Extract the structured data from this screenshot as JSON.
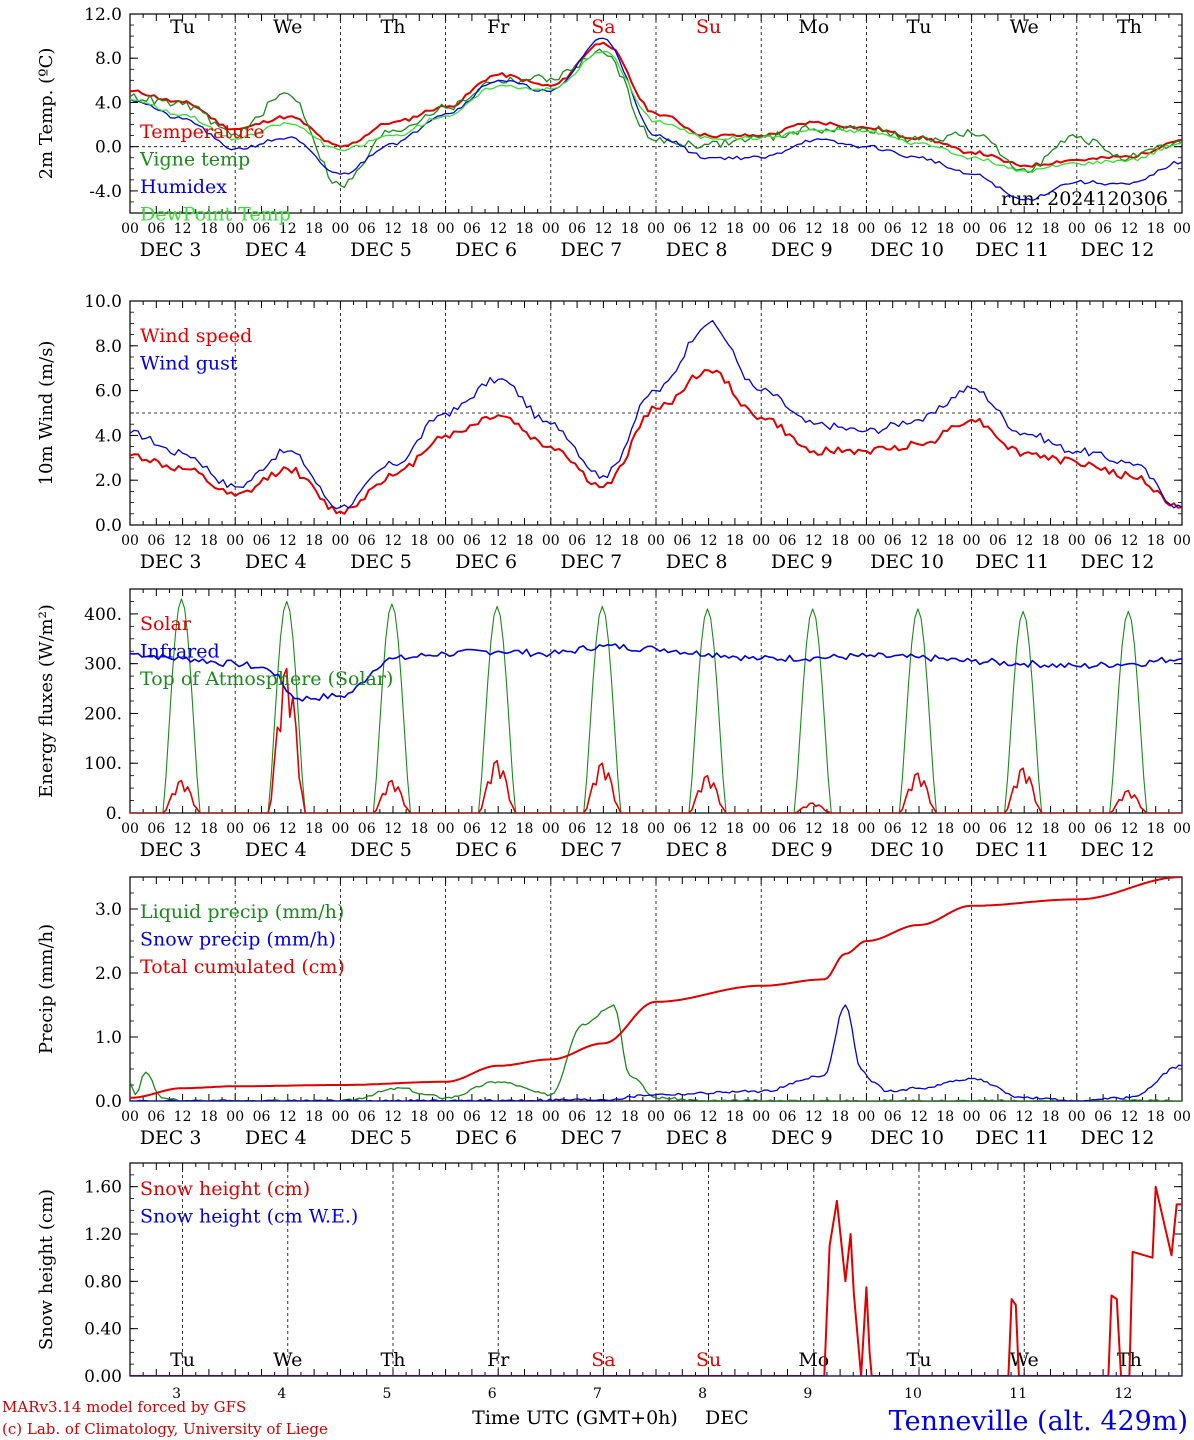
{
  "colors": {
    "red": "#e00000",
    "green": "#1a8a1a",
    "blue": "#0000e0",
    "lightgreen": "#33e033",
    "weekend": "#e00000",
    "text": "#000000"
  },
  "footer": {
    "credit_line1": "MARv3.14 model forced by GFS",
    "credit_line2": "(c) Lab. of Climatology, University of Liege",
    "xlabel": "Time UTC (GMT+0h)",
    "month": "DEC",
    "station": "Tenneville (alt. 429m)"
  },
  "chart_data": [
    {
      "type": "line",
      "ylabel": "2m Temp. (ºC)",
      "ylim": [
        -6,
        12
      ],
      "yticks": [
        "12.0",
        "8.0",
        "4.0",
        "0.0",
        "-4.0"
      ],
      "ytick_values": [
        12,
        8,
        4,
        0,
        -4
      ],
      "refline": 0,
      "annotation": "run: 2024120306",
      "weekdays": [
        "Tu",
        "We",
        "Th",
        "Fr",
        "Sa",
        "Su",
        "Mo",
        "Tu",
        "We",
        "Th"
      ],
      "weekend_days": [
        "Sa",
        "Su"
      ],
      "x_hours": [
        "00",
        "06",
        "12",
        "18"
      ],
      "dates": [
        "DEC 3",
        "DEC 4",
        "DEC 5",
        "DEC 6",
        "DEC 7",
        "DEC 8",
        "DEC 9",
        "DEC 10",
        "DEC 11",
        "DEC 12"
      ],
      "x": [
        0,
        0.5,
        1,
        1.5,
        2,
        2.5,
        3,
        3.5,
        4,
        4.5,
        5,
        5.5,
        6,
        6.5,
        7,
        7.5,
        8,
        8.5,
        9,
        9.5,
        10
      ],
      "series": [
        {
          "name": "Temperature",
          "color": "red",
          "values": [
            5.0,
            4.0,
            1.6,
            2.7,
            0.0,
            2.2,
            3.6,
            6.5,
            5.5,
            9.4,
            3.0,
            1.0,
            1.0,
            2.2,
            1.7,
            0.8,
            -0.5,
            -1.7,
            -1.2,
            -0.9,
            0.6
          ]
        },
        {
          "name": "Vigne temp",
          "color": "green",
          "values": [
            4.5,
            3.8,
            1.2,
            4.8,
            -3.5,
            1.5,
            3.5,
            6.0,
            6.2,
            8.5,
            0.5,
            0.2,
            0.8,
            1.6,
            1.6,
            0.6,
            1.2,
            -2.0,
            0.8,
            -1.0,
            0.3
          ]
        },
        {
          "name": "Humidex",
          "color": "blue",
          "values": [
            4.3,
            2.5,
            -0.2,
            0.8,
            -2.5,
            0.3,
            3.0,
            6.0,
            5.0,
            9.8,
            1.0,
            -1.0,
            -1.0,
            0.6,
            0.0,
            -1.0,
            -2.5,
            -4.8,
            -3.2,
            -3.4,
            -1.4
          ]
        },
        {
          "name": "DewPoint Temp",
          "color": "lightgreen",
          "values": [
            4.3,
            2.9,
            0.7,
            2.1,
            -0.3,
            1.0,
            2.8,
            5.5,
            5.2,
            8.6,
            2.3,
            0.8,
            0.8,
            1.5,
            1.4,
            0.3,
            -1.0,
            -2.2,
            -1.5,
            -1.2,
            0.3
          ]
        }
      ]
    },
    {
      "type": "line",
      "ylabel": "10m Wind (m/s)",
      "ylim": [
        0,
        10
      ],
      "yticks": [
        "10.0",
        "8.0",
        "6.0",
        "4.0",
        "2.0",
        "0.0"
      ],
      "ytick_values": [
        10,
        8,
        6,
        4,
        2,
        0
      ],
      "refline": 5,
      "x_hours": [
        "00",
        "06",
        "12",
        "18"
      ],
      "dates": [
        "DEC 3",
        "DEC 4",
        "DEC 5",
        "DEC 6",
        "DEC 7",
        "DEC 8",
        "DEC 9",
        "DEC 10",
        "DEC 11",
        "DEC 12"
      ],
      "x": [
        0,
        0.5,
        1,
        1.5,
        2,
        2.5,
        3,
        3.5,
        4,
        4.5,
        5,
        5.5,
        6,
        6.5,
        7,
        7.5,
        8,
        8.5,
        9,
        9.5,
        10
      ],
      "series": [
        {
          "name": "Wind speed",
          "color": "red",
          "values": [
            3.1,
            2.5,
            1.3,
            2.5,
            0.6,
            2.2,
            4.0,
            4.9,
            3.5,
            1.7,
            5.2,
            6.9,
            4.8,
            3.3,
            3.3,
            3.6,
            4.7,
            3.2,
            2.8,
            2.2,
            0.8
          ]
        },
        {
          "name": "Wind gust",
          "color": "blue",
          "values": [
            4.1,
            3.2,
            1.7,
            3.3,
            0.8,
            2.7,
            5.0,
            6.5,
            4.5,
            2.2,
            6.0,
            9.0,
            6.0,
            4.5,
            4.2,
            4.7,
            6.1,
            4.1,
            3.3,
            2.8,
            0.8
          ]
        }
      ]
    },
    {
      "type": "line",
      "ylabel": "Energy fluxes (W/m²)",
      "ylim": [
        0,
        450
      ],
      "yticks": [
        "400.",
        "300.",
        "200.",
        "100.",
        "0."
      ],
      "ytick_values": [
        400,
        300,
        200,
        100,
        0
      ],
      "x_hours": [
        "00",
        "06",
        "12",
        "18"
      ],
      "dates": [
        "DEC 3",
        "DEC 4",
        "DEC 5",
        "DEC 6",
        "DEC 7",
        "DEC 8",
        "DEC 9",
        "DEC 10",
        "DEC 11",
        "DEC 12"
      ],
      "daily_solar_peak": [
        65,
        290,
        65,
        105,
        100,
        75,
        20,
        80,
        90,
        45
      ],
      "daily_toa_peak": [
        430,
        425,
        420,
        415,
        415,
        410,
        410,
        410,
        405,
        405
      ],
      "series": [
        {
          "name": "Solar",
          "color": "red"
        },
        {
          "name": "Infrared",
          "color": "blue",
          "x": [
            0,
            0.5,
            1,
            1.3,
            1.6,
            2,
            2.5,
            3,
            3.5,
            4,
            4.5,
            5,
            5.5,
            6,
            6.5,
            7,
            7.5,
            8,
            8.5,
            9,
            9.5,
            10
          ],
          "values": [
            320,
            310,
            300,
            290,
            230,
            235,
            310,
            320,
            325,
            320,
            335,
            330,
            320,
            310,
            312,
            315,
            312,
            305,
            300,
            295,
            300,
            310
          ]
        },
        {
          "name": "Top of Atmosphere (Solar)",
          "color": "green"
        }
      ]
    },
    {
      "type": "line",
      "ylabel": "Precip (mm/h)",
      "ylim": [
        0,
        3.5
      ],
      "yticks": [
        "3.0",
        "2.0",
        "1.0",
        "0.0"
      ],
      "ytick_values": [
        3,
        2,
        1,
        0
      ],
      "x_hours": [
        "00",
        "06",
        "12",
        "18"
      ],
      "dates": [
        "DEC 3",
        "DEC 4",
        "DEC 5",
        "DEC 6",
        "DEC 7",
        "DEC 8",
        "DEC 9",
        "DEC 10",
        "DEC 11",
        "DEC 12"
      ],
      "series": [
        {
          "name": "Liquid precip (mm/h)",
          "color": "green",
          "x": [
            0,
            0.05,
            0.15,
            0.3,
            0.5,
            1,
            2,
            2.6,
            2.8,
            3,
            3.5,
            4,
            4.3,
            4.6,
            4.75,
            5,
            5.5,
            6,
            10
          ],
          "values": [
            0.3,
            0.1,
            0.45,
            0.05,
            0.0,
            0.0,
            0.0,
            0.2,
            0.1,
            0.05,
            0.3,
            0.1,
            1.2,
            1.5,
            0.4,
            0.05,
            0.0,
            0.0,
            0.0
          ]
        },
        {
          "name": "Snow precip (mm/h)",
          "color": "blue",
          "x": [
            0,
            3,
            4.5,
            5,
            6,
            6.6,
            6.8,
            6.95,
            7.05,
            7.2,
            7.5,
            8,
            8.5,
            9,
            9.5,
            10
          ],
          "values": [
            0.0,
            0.0,
            0.02,
            0.1,
            0.15,
            0.4,
            1.5,
            0.5,
            0.3,
            0.15,
            0.2,
            0.35,
            0.05,
            0.0,
            0.05,
            0.55
          ]
        },
        {
          "name": "Total cumulated (cm)",
          "color": "red",
          "x": [
            0,
            0.5,
            1,
            2,
            3,
            3.5,
            4,
            4.5,
            5,
            6,
            6.6,
            6.8,
            7,
            7.5,
            8,
            9,
            10
          ],
          "values": [
            0.05,
            0.2,
            0.23,
            0.25,
            0.3,
            0.55,
            0.65,
            0.9,
            1.55,
            1.8,
            1.9,
            2.3,
            2.5,
            2.75,
            3.05,
            3.15,
            3.5
          ]
        }
      ]
    },
    {
      "type": "line",
      "ylabel": "Snow height (cm)",
      "ylim": [
        0,
        1.8
      ],
      "yticks": [
        "1.60",
        "1.20",
        "0.80",
        "0.40",
        "0.00"
      ],
      "ytick_values": [
        1.6,
        1.2,
        0.8,
        0.4,
        0.0
      ],
      "weekdays": [
        "Tu",
        "We",
        "Th",
        "Fr",
        "Sa",
        "Su",
        "Mo",
        "Tu",
        "We",
        "Th"
      ],
      "weekend_days": [
        "Sa",
        "Su"
      ],
      "day_numbers": [
        "3",
        "4",
        "5",
        "6",
        "7",
        "8",
        "9",
        "10",
        "11",
        "12"
      ],
      "series": [
        {
          "name": "Snow height (cm)",
          "color": "red",
          "x": [
            0,
            6.6,
            6.65,
            6.72,
            6.8,
            6.85,
            6.88,
            6.95,
            7.0,
            7.03,
            7.05,
            7.1,
            8.35,
            8.38,
            8.42,
            8.45,
            8.48,
            9.3,
            9.33,
            9.38,
            9.42,
            9.5,
            9.53,
            9.72,
            9.75,
            9.9,
            9.95,
            10.0
          ],
          "values": [
            0,
            0,
            1.1,
            1.48,
            0.8,
            1.2,
            0.7,
            0,
            0.75,
            0.2,
            0,
            0,
            0,
            0.65,
            0.6,
            0,
            0,
            0,
            0.68,
            0.65,
            0,
            0,
            1.05,
            1.0,
            1.6,
            1.02,
            1.45,
            1.45
          ]
        },
        {
          "name": "Snow height (cm W.E.)",
          "color": "blue",
          "x": [
            0,
            10
          ],
          "values": [
            0,
            0
          ]
        }
      ]
    }
  ]
}
